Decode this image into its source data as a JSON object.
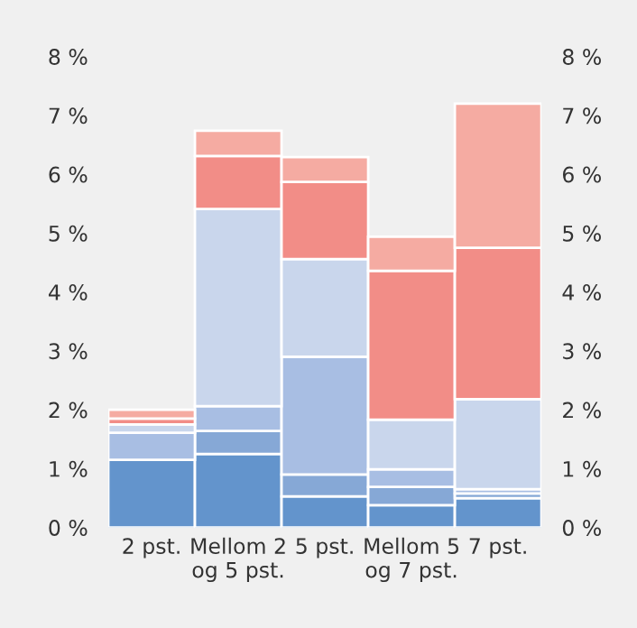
{
  "chart_data": {
    "type": "bar",
    "stacked": true,
    "categories": [
      "2 pst.",
      "Mellom 2\nog 5 pst.",
      "5 pst.",
      "Mellom 5\nog 7 pst.",
      "7 pst."
    ],
    "series": [
      {
        "color": "#6394cc",
        "values": [
          1.15,
          1.25,
          0.53,
          0.38,
          0.5
        ]
      },
      {
        "color": "#86a8d6",
        "values": [
          null,
          0.39,
          0.37,
          0.31,
          0.08
        ]
      },
      {
        "color": "#a8bee3",
        "values": [
          0.46,
          0.42,
          2.0,
          0.3,
          0.07
        ]
      },
      {
        "color": "#c9d6ec",
        "values": [
          0.14,
          3.35,
          1.66,
          0.84,
          1.53
        ]
      },
      {
        "color": "#f28d87",
        "values": [
          0.1,
          0.9,
          1.31,
          2.53,
          2.57
        ]
      },
      {
        "color": "#f5aba2",
        "values": [
          0.15,
          0.43,
          0.42,
          0.58,
          2.45
        ]
      }
    ],
    "ylim": [
      0,
      8
    ],
    "yticks": [
      {
        "value": 0,
        "label": "0 %"
      },
      {
        "value": 1,
        "label": "1 %"
      },
      {
        "value": 2,
        "label": "2 %"
      },
      {
        "value": 3,
        "label": "3 %"
      },
      {
        "value": 4,
        "label": "4 %"
      },
      {
        "value": 5,
        "label": "5 %"
      },
      {
        "value": 6,
        "label": "6 %"
      },
      {
        "value": 7,
        "label": "7 %"
      },
      {
        "value": 8,
        "label": "8 %"
      }
    ],
    "y2lim": [
      0,
      8
    ],
    "y2ticks": [
      {
        "value": 0,
        "label": "0 %"
      },
      {
        "value": 1,
        "label": "1 %"
      },
      {
        "value": 2,
        "label": "2 %"
      },
      {
        "value": 3,
        "label": "3 %"
      },
      {
        "value": 4,
        "label": "4 %"
      },
      {
        "value": 5,
        "label": "5 %"
      },
      {
        "value": 6,
        "label": "6 %"
      },
      {
        "value": 7,
        "label": "7 %"
      },
      {
        "value": 8,
        "label": "8 %"
      }
    ],
    "grid": false
  }
}
